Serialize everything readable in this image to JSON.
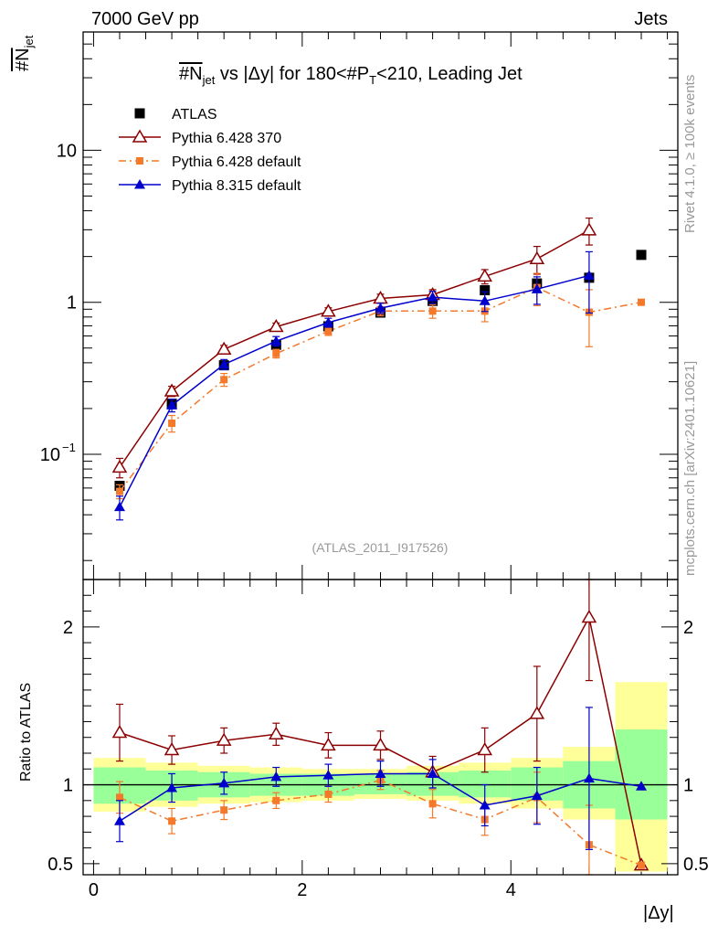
{
  "header": {
    "left": "7000 GeV pp",
    "right": "Jets"
  },
  "side": {
    "rivet": "Rivet 4.1.0, ≥ 100k events",
    "mcplots": "mcplots.cern.ch [arXiv:2401.10621]"
  },
  "chart_data": {
    "type": "line",
    "title_main": "#N",
    "title_sub": "jet",
    "title_mid": " vs |Δy| for 180<#P",
    "title_sub2": "T",
    "title_end": "<210, Leading Jet",
    "ylabel_main": "#N",
    "ylabel_sub": "jet",
    "xlabel": "|Δy|",
    "ratio_ylabel": "Ratio to ATLAS",
    "watermark": "(ATLAS_2011_I917526)",
    "xlim": [
      -0.1,
      5.6
    ],
    "ylim": [
      0.015,
      60
    ],
    "yscale": "log",
    "ratio_ylim": [
      0.43,
      2.3
    ],
    "x_ticks": [
      "0",
      "2",
      "4"
    ],
    "x_tick_values": [
      0,
      2,
      4
    ],
    "y_ticks": [
      {
        "value": 0.1,
        "base": "10",
        "exp": "−1"
      },
      {
        "value": 1,
        "base": "1",
        "exp": ""
      },
      {
        "value": 10,
        "base": "10",
        "exp": ""
      }
    ],
    "ratio_ticks": [
      {
        "value": 0.5,
        "label": "0.5"
      },
      {
        "value": 1,
        "label": "1"
      },
      {
        "value": 2,
        "label": "2"
      }
    ],
    "x": [
      0.25,
      0.75,
      1.25,
      1.75,
      2.25,
      2.75,
      3.25,
      3.75,
      4.25,
      4.75,
      5.25
    ],
    "bins": [
      [
        0,
        0.5
      ],
      [
        0.5,
        1.0
      ],
      [
        1.0,
        1.5
      ],
      [
        1.5,
        2.0
      ],
      [
        2.0,
        2.5
      ],
      [
        2.5,
        3.0
      ],
      [
        3.0,
        3.5
      ],
      [
        3.5,
        4.0
      ],
      [
        4.0,
        4.5
      ],
      [
        4.5,
        5.0
      ],
      [
        5.0,
        5.5
      ]
    ],
    "band_green": [
      [
        0.88,
        1.11
      ],
      [
        0.9,
        1.09
      ],
      [
        0.92,
        1.08
      ],
      [
        0.93,
        1.07
      ],
      [
        0.93,
        1.07
      ],
      [
        0.94,
        1.07
      ],
      [
        0.93,
        1.08
      ],
      [
        0.92,
        1.09
      ],
      [
        0.9,
        1.11
      ],
      [
        0.85,
        1.15
      ],
      [
        0.78,
        1.35
      ]
    ],
    "band_yellow": [
      [
        0.83,
        1.17
      ],
      [
        0.86,
        1.14
      ],
      [
        0.88,
        1.12
      ],
      [
        0.89,
        1.11
      ],
      [
        0.9,
        1.1
      ],
      [
        0.91,
        1.1
      ],
      [
        0.9,
        1.12
      ],
      [
        0.88,
        1.14
      ],
      [
        0.85,
        1.17
      ],
      [
        0.78,
        1.24
      ],
      [
        0.45,
        1.65
      ]
    ],
    "series": [
      {
        "name": "ATLAS",
        "style": "data",
        "color": "#000000",
        "values": [
          0.062,
          0.215,
          0.385,
          0.525,
          0.695,
          0.855,
          1.02,
          1.2,
          1.33,
          1.45,
          2.05
        ]
      },
      {
        "name": "Pythia 6.428 370",
        "style": "open-triangle",
        "color": "#8b0000",
        "values": [
          0.082,
          0.26,
          0.49,
          0.69,
          0.87,
          1.06,
          1.12,
          1.48,
          1.93,
          2.98,
          null
        ],
        "err": [
          0.012,
          0.02,
          0.03,
          0.04,
          0.05,
          0.07,
          0.09,
          0.16,
          0.4,
          0.6,
          null
        ],
        "ratio": [
          1.33,
          1.22,
          1.28,
          1.32,
          1.25,
          1.25,
          1.08,
          1.22,
          1.45,
          2.06,
          0.49
        ],
        "ratio_err": [
          0.18,
          0.09,
          0.08,
          0.07,
          0.08,
          0.09,
          0.1,
          0.14,
          0.3,
          0.4,
          null
        ]
      },
      {
        "name": "Pythia 6.428 default",
        "style": "square-dashdot",
        "color": "#f4792b",
        "values": [
          0.057,
          0.16,
          0.31,
          0.46,
          0.645,
          0.875,
          0.875,
          0.875,
          1.25,
          0.86,
          1.0
        ],
        "err": [
          0.006,
          0.02,
          0.03,
          0.03,
          0.04,
          0.06,
          0.09,
          0.13,
          0.3,
          0.35,
          null
        ],
        "ratio": [
          0.92,
          0.77,
          0.84,
          0.9,
          0.94,
          1.03,
          0.88,
          0.78,
          0.92,
          0.62,
          0.49
        ],
        "ratio_err": [
          0.1,
          0.08,
          0.06,
          0.05,
          0.05,
          0.06,
          0.09,
          0.1,
          0.16,
          0.25,
          null
        ]
      },
      {
        "name": "Pythia 8.315 default",
        "style": "triangle",
        "color": "#0000cc",
        "values": [
          0.045,
          0.21,
          0.39,
          0.555,
          0.735,
          0.915,
          1.08,
          1.02,
          1.22,
          1.5,
          null
        ],
        "err": [
          0.008,
          0.02,
          0.03,
          0.04,
          0.05,
          0.07,
          0.1,
          0.15,
          0.25,
          0.65,
          null
        ],
        "ratio": [
          0.77,
          0.98,
          1.01,
          1.05,
          1.06,
          1.07,
          1.07,
          0.87,
          0.93,
          1.04,
          0.99
        ],
        "ratio_err": [
          0.13,
          0.09,
          0.07,
          0.06,
          0.07,
          0.08,
          0.09,
          0.13,
          0.18,
          0.45,
          null
        ]
      }
    ]
  }
}
